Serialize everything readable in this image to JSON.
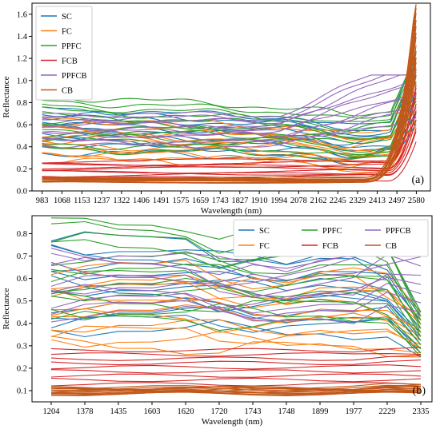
{
  "chart_data": [
    {
      "type": "line",
      "panel_label": "(a)",
      "xlabel": "Wavelength (nm)",
      "ylabel": "Reflectance",
      "xlim": [
        940,
        2640
      ],
      "ylim": [
        0.0,
        1.7
      ],
      "x_ticks": [
        983,
        1068,
        1153,
        1237,
        1322,
        1406,
        1491,
        1575,
        1659,
        1743,
        1827,
        1910,
        1994,
        2078,
        2162,
        2245,
        2329,
        2413,
        2497,
        2580
      ],
      "y_ticks": [
        0.0,
        0.2,
        0.4,
        0.6,
        0.8,
        1.0,
        1.2,
        1.4,
        1.6
      ],
      "y_tick_labels": [
        "0.0",
        "0.2",
        "0.4",
        "0.6",
        "0.8",
        "1.0",
        "1.2",
        "1.4",
        "1.6"
      ],
      "grid": false,
      "legend": {
        "position": "top-left",
        "ncol": 1
      },
      "series": [
        {
          "name": "SC",
          "color": "#1f77b4",
          "members": 12,
          "level_range": [
            0.35,
            0.75
          ]
        },
        {
          "name": "FC",
          "color": "#ff7f0e",
          "members": 12,
          "level_range": [
            0.28,
            0.66
          ]
        },
        {
          "name": "PPFC",
          "color": "#2ca02c",
          "members": 12,
          "level_range": [
            0.38,
            0.86
          ]
        },
        {
          "name": "FCB",
          "color": "#d62728",
          "members": 10,
          "level_range": [
            0.11,
            0.27
          ]
        },
        {
          "name": "PPFCB",
          "color": "#9467bd",
          "members": 10,
          "level_range": [
            0.42,
            0.7
          ]
        },
        {
          "name": "CB",
          "color": "#c1581a",
          "members": 14,
          "level_range": [
            0.08,
            0.12
          ]
        }
      ]
    },
    {
      "type": "line",
      "panel_label": "(b)",
      "xlabel": "Wavelength (nm)",
      "ylabel": "Reflectance",
      "ylim": [
        0.05,
        0.88
      ],
      "categories": [
        "1204",
        "1378",
        "1435",
        "1603",
        "1620",
        "1720",
        "1743",
        "1748",
        "1899",
        "1977",
        "2229",
        "2335"
      ],
      "y_ticks": [
        0.1,
        0.2,
        0.3,
        0.4,
        0.5,
        0.6,
        0.7,
        0.8
      ],
      "y_tick_labels": [
        "0.1",
        "0.2",
        "0.3",
        "0.4",
        "0.5",
        "0.6",
        "0.7",
        "0.8"
      ],
      "grid": false,
      "legend": {
        "position": "top-right",
        "ncol": 3
      },
      "series": [
        {
          "name": "SC",
          "color": "#1f77b4",
          "members": 12,
          "level_range": [
            0.38,
            0.78
          ]
        },
        {
          "name": "FC",
          "color": "#ff7f0e",
          "members": 12,
          "level_range": [
            0.3,
            0.66
          ]
        },
        {
          "name": "PPFC",
          "color": "#2ca02c",
          "members": 12,
          "level_range": [
            0.42,
            0.86
          ]
        },
        {
          "name": "FCB",
          "color": "#d62728",
          "members": 10,
          "level_range": [
            0.11,
            0.28
          ]
        },
        {
          "name": "PPFCB",
          "color": "#9467bd",
          "members": 10,
          "level_range": [
            0.45,
            0.72
          ]
        },
        {
          "name": "CB",
          "color": "#c1581a",
          "members": 14,
          "level_range": [
            0.085,
            0.115
          ]
        }
      ]
    }
  ]
}
